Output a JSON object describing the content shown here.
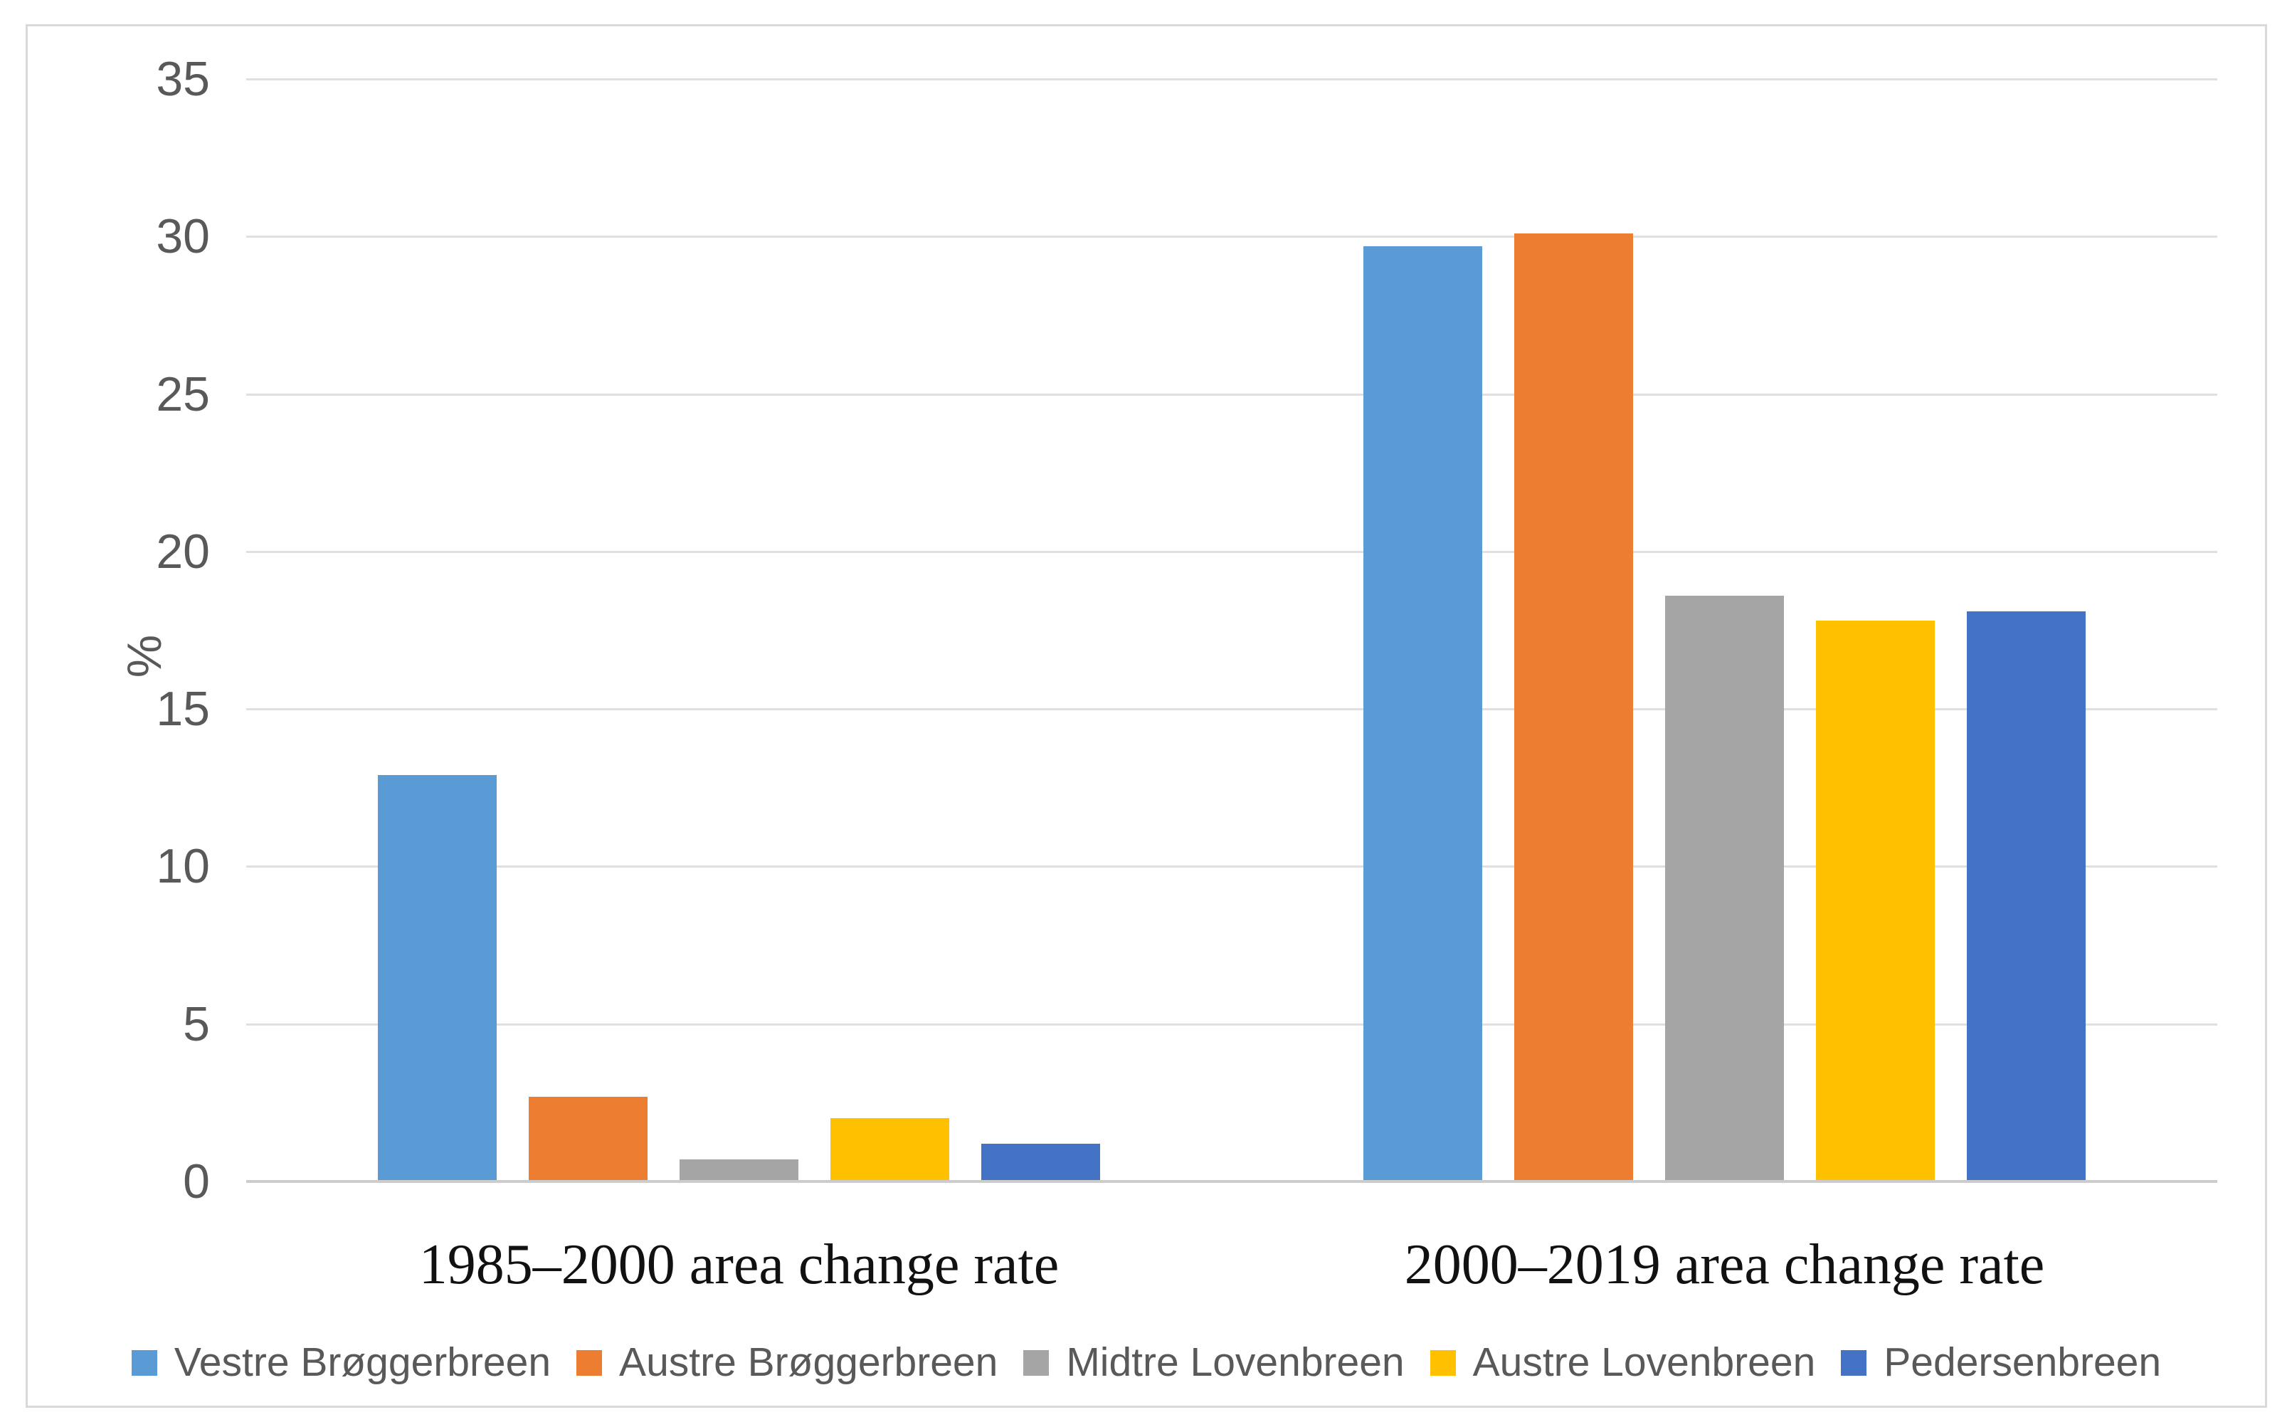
{
  "chart_data": {
    "type": "bar",
    "title": "",
    "xlabel": "",
    "ylabel": "%",
    "categories": [
      "1985–2000 area change rate",
      "2000–2019 area change rate"
    ],
    "series": [
      {
        "name": "Vestre Brøggerbreen",
        "color": "#5B9BD5",
        "values": [
          12.9,
          29.7
        ]
      },
      {
        "name": "Austre Brøggerbreen",
        "color": "#ED7D31",
        "values": [
          2.7,
          30.1
        ]
      },
      {
        "name": "Midtre Lovenbreen",
        "color": "#A5A5A5",
        "values": [
          0.7,
          18.6
        ]
      },
      {
        "name": "Austre Lovenbreen",
        "color": "#FFC000",
        "values": [
          2.0,
          17.8
        ]
      },
      {
        "name": "Pedersenbreen",
        "color": "#4472C4",
        "values": [
          1.2,
          18.1
        ]
      }
    ],
    "ylim": [
      0,
      35
    ],
    "yticks": [
      0,
      5,
      10,
      15,
      20,
      25,
      30,
      35
    ],
    "grid": true,
    "legend_position": "bottom"
  },
  "colors": {
    "background": "#FFFFFF",
    "frame_border": "#D9D9D9",
    "gridline": "#E0E0E0",
    "axis_line": "#CCCCCC",
    "tick_label": "#595959",
    "legend_label": "#595959",
    "category_label": "#111111"
  }
}
